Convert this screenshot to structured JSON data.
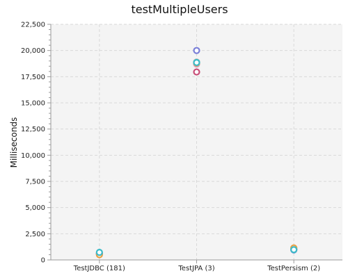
{
  "chart_data": {
    "type": "scatter",
    "title": "testMultipleUsers",
    "xlabel": "",
    "ylabel": "Milliseconds",
    "categories": [
      "TestJDBC (181)",
      "TestJPA (3)",
      "TestPersism (2)"
    ],
    "ylim": [
      0,
      22500
    ],
    "yticks": [
      0,
      2500,
      5000,
      7500,
      10000,
      12500,
      15000,
      17500,
      20000,
      22500
    ],
    "ytick_labels": [
      "0",
      "2,500",
      "5,000",
      "7,500",
      "10,000",
      "12,500",
      "15,000",
      "17,500",
      "20,000",
      "22,500"
    ],
    "grid": true,
    "legend": "none",
    "background": "#f4f4f4",
    "series": [
      {
        "color": "#7a7fd8",
        "values": [
          550,
          20000,
          950
        ]
      },
      {
        "color": "#b8b8b8",
        "values": [
          600,
          18900,
          1050
        ]
      },
      {
        "color": "#d9a0c8",
        "values": [
          580,
          18700,
          1000
        ]
      },
      {
        "color": "#c84e78",
        "values": [
          620,
          17950,
          1000
        ]
      },
      {
        "color": "#e8a045",
        "values": [
          500,
          18800,
          1150
        ]
      },
      {
        "color": "#3bbbc8",
        "values": [
          720,
          18850,
          980
        ]
      }
    ]
  }
}
